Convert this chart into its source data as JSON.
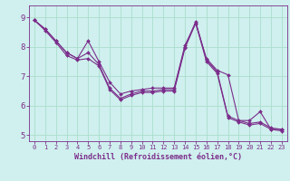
{
  "title": "",
  "xlabel": "Windchill (Refroidissement éolien,°C)",
  "ylabel": "",
  "xlim": [
    -0.5,
    23.5
  ],
  "ylim": [
    4.8,
    9.4
  ],
  "xticks": [
    0,
    1,
    2,
    3,
    4,
    5,
    6,
    7,
    8,
    9,
    10,
    11,
    12,
    13,
    14,
    15,
    16,
    17,
    18,
    19,
    20,
    21,
    22,
    23
  ],
  "yticks": [
    5,
    6,
    7,
    8,
    9
  ],
  "background_color": "#cff0ee",
  "line_color": "#7b2d8b",
  "grid_color": "#aaddcc",
  "series": [
    [
      8.9,
      8.6,
      8.2,
      7.8,
      7.6,
      8.2,
      7.5,
      6.8,
      6.4,
      6.5,
      6.55,
      6.6,
      6.6,
      6.6,
      8.05,
      8.8,
      7.6,
      7.2,
      7.05,
      5.5,
      5.5,
      5.8,
      5.2,
      5.2
    ],
    [
      8.9,
      8.6,
      8.2,
      7.8,
      7.6,
      7.8,
      7.4,
      6.6,
      6.25,
      6.4,
      6.5,
      6.5,
      6.55,
      6.55,
      8.0,
      8.85,
      7.55,
      7.15,
      5.65,
      5.5,
      5.4,
      5.45,
      5.25,
      5.2
    ],
    [
      8.9,
      8.55,
      8.15,
      7.7,
      7.55,
      7.6,
      7.35,
      6.55,
      6.2,
      6.35,
      6.45,
      6.45,
      6.5,
      6.5,
      7.95,
      8.8,
      7.5,
      7.1,
      5.6,
      5.45,
      5.35,
      5.4,
      5.2,
      5.15
    ]
  ],
  "xlabel_fontsize": 6.0,
  "xtick_fontsize": 5.0,
  "ytick_fontsize": 6.5,
  "linewidth": 0.8,
  "markersize": 2.0
}
